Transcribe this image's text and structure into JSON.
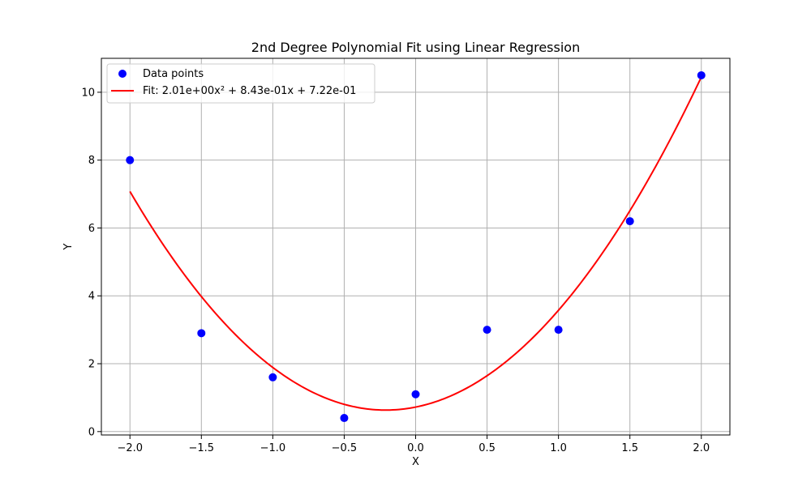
{
  "chart_data": {
    "type": "scatter",
    "title": "2nd Degree Polynomial Fit using Linear Regression",
    "xlabel": "X",
    "ylabel": "Y",
    "xlim": [
      -2.2,
      2.2
    ],
    "ylim": [
      -0.1,
      11.0
    ],
    "xticks": [
      -2.0,
      -1.5,
      -1.0,
      -0.5,
      0.0,
      0.5,
      1.0,
      1.5,
      2.0
    ],
    "xtick_labels": [
      "−2.0",
      "−1.5",
      "−1.0",
      "−0.5",
      "0.0",
      "0.5",
      "1.0",
      "1.5",
      "2.0"
    ],
    "yticks": [
      0,
      2,
      4,
      6,
      8,
      10
    ],
    "ytick_labels": [
      "0",
      "2",
      "4",
      "6",
      "8",
      "10"
    ],
    "grid": true,
    "legend_position": "top-left",
    "series": [
      {
        "name": "Data points",
        "kind": "scatter",
        "color": "#0000ff",
        "x": [
          -2.0,
          -1.5,
          -1.0,
          -0.5,
          0.0,
          0.5,
          1.0,
          1.5,
          2.0
        ],
        "y": [
          8.0,
          2.9,
          1.6,
          0.4,
          1.1,
          3.0,
          3.0,
          6.2,
          10.5
        ]
      },
      {
        "name": "Fit: 2.01e+00x² + 8.43e-01x + 7.22e-01",
        "kind": "line",
        "color": "#ff0000",
        "polynomial": [
          2.01,
          0.843,
          0.722
        ],
        "x_range": [
          -2.0,
          2.0
        ]
      }
    ]
  }
}
